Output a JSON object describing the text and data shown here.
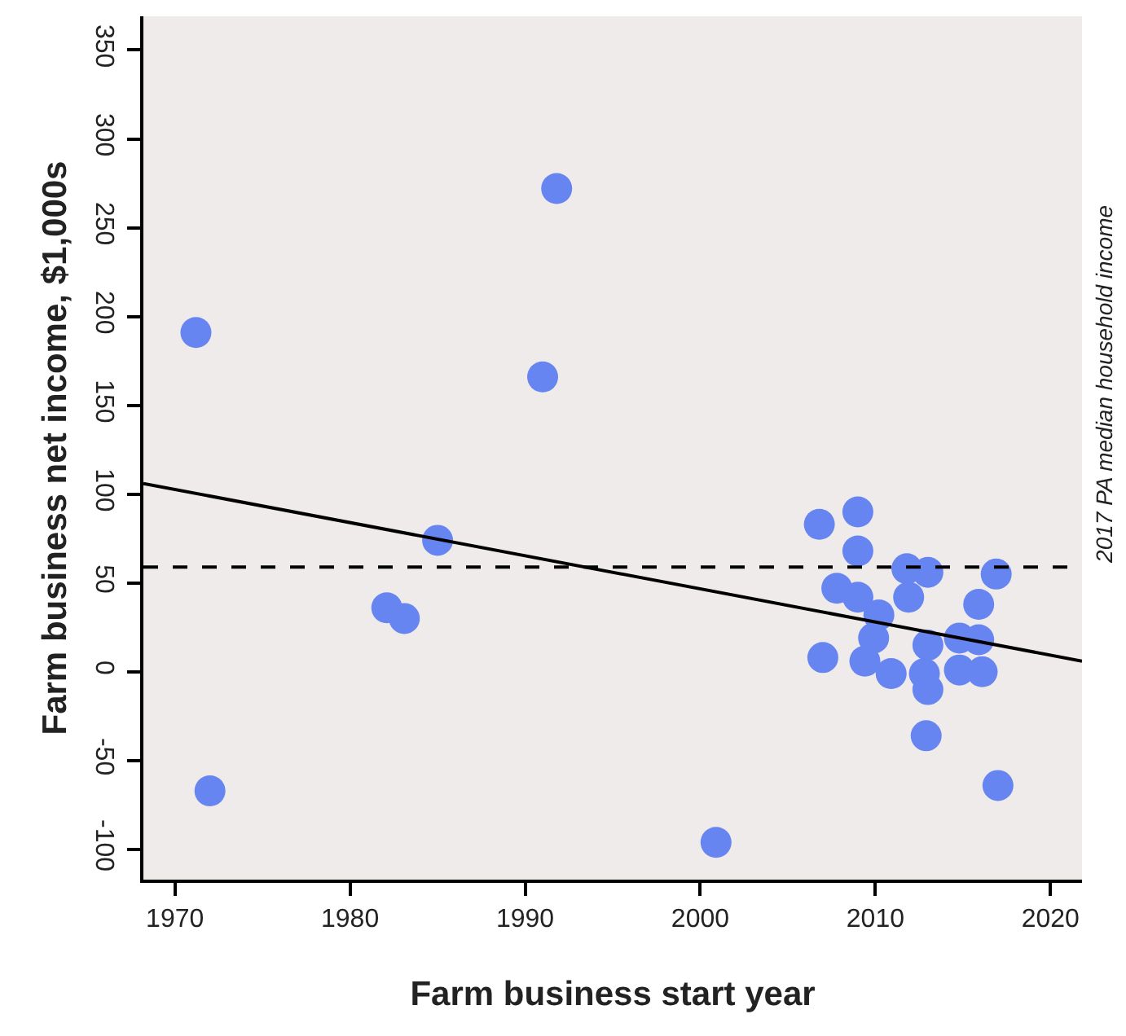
{
  "chart_data": {
    "type": "scatter",
    "xlabel": "Farm business start year",
    "ylabel": "Farm business net income, $1,000s",
    "xlim": [
      1968.2,
      2021.8
    ],
    "xticks": [
      1970,
      1980,
      1990,
      2000,
      2010,
      2020
    ],
    "ylim": [
      -117,
      369
    ],
    "yticks": [
      -100,
      -50,
      0,
      50,
      100,
      150,
      200,
      250,
      300,
      350
    ],
    "grid": false,
    "marker": "circle",
    "series": [
      {
        "color": "#6785f0",
        "x": [
          1971.2,
          1972.0,
          1982.1,
          1983.1,
          1985.0,
          1991.0,
          1991.8,
          2000.9,
          2006.8,
          2009.0,
          2009.0,
          2011.8,
          2013.0,
          2016.9,
          2007.8,
          2009.0,
          2011.9,
          2015.9,
          2009.9,
          2010.2,
          2007.0,
          2009.4,
          2010.9,
          2013.0,
          2012.8,
          2013.0,
          2014.8,
          2015.9,
          2014.8,
          2016.1,
          2012.9,
          2017.0
        ],
        "values": [
          191,
          -67,
          36,
          30,
          74,
          166,
          272,
          -96,
          83,
          90,
          68,
          58,
          56,
          55,
          47,
          42,
          42,
          38,
          19,
          32,
          8,
          6,
          -1,
          15,
          -1,
          -10,
          19,
          18,
          1,
          0,
          -36,
          -64
        ]
      },
      {
        "type": "line",
        "marker": "none",
        "color": "#000000",
        "line_style": "solid",
        "x": [
          1968.2,
          2021.8
        ],
        "values": [
          106,
          6
        ]
      }
    ],
    "ref_lines": [
      {
        "axis": "y",
        "value": 59,
        "label": "2017 PA median household income",
        "color": "#000000",
        "line_style": "dashed"
      }
    ]
  }
}
